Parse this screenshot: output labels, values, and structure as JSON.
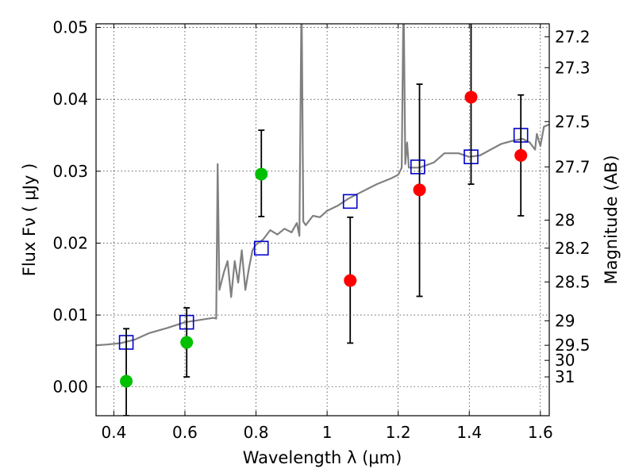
{
  "chart_data": {
    "type": "scatter",
    "title": "",
    "xlabel": "Wavelength  λ (μm)",
    "ylabel": "Flux  Fν  ( μJy )",
    "y2label": "Magnitude (AB)",
    "xlim": [
      0.35,
      1.625
    ],
    "ylim": [
      -0.004,
      0.0505
    ],
    "grid": true,
    "xticks": [
      0.4,
      0.6,
      0.8,
      1.0,
      1.2,
      1.4,
      1.6
    ],
    "xtick_labels": [
      "0.4",
      "0.6",
      "0.8",
      "1",
      "1.2",
      "1.4",
      "1.6"
    ],
    "yticks": [
      0.0,
      0.01,
      0.02,
      0.03,
      0.04,
      0.05
    ],
    "ytick_labels": [
      "0.00",
      "0.01",
      "0.02",
      "0.03",
      "0.04",
      "0.05"
    ],
    "mag_ticks": [
      {
        "label": "27.2",
        "flux": 0.0487
      },
      {
        "label": "27.3",
        "flux": 0.0444
      },
      {
        "label": "27.5",
        "flux": 0.0369
      },
      {
        "label": "27.7",
        "flux": 0.0306
      },
      {
        "label": "28",
        "flux": 0.0232
      },
      {
        "label": "28.2",
        "flux": 0.0193
      },
      {
        "label": "28.5",
        "flux": 0.0146
      },
      {
        "label": "29",
        "flux": 0.0092
      },
      {
        "label": "29.5",
        "flux": 0.0058
      },
      {
        "label": "30",
        "flux": 0.0037
      },
      {
        "label": "31",
        "flux": 0.0014
      }
    ],
    "series": [
      {
        "kind": "line",
        "color": "#808080",
        "points": [
          [
            0.35,
            0.0058
          ],
          [
            0.38,
            0.0059
          ],
          [
            0.42,
            0.0061
          ],
          [
            0.46,
            0.0066
          ],
          [
            0.5,
            0.0075
          ],
          [
            0.55,
            0.0082
          ],
          [
            0.6,
            0.009
          ],
          [
            0.64,
            0.0093
          ],
          [
            0.68,
            0.0096
          ],
          [
            0.688,
            0.0095
          ],
          [
            0.692,
            0.031
          ],
          [
            0.697,
            0.0135
          ],
          [
            0.71,
            0.016
          ],
          [
            0.72,
            0.0175
          ],
          [
            0.73,
            0.0125
          ],
          [
            0.74,
            0.0175
          ],
          [
            0.75,
            0.0145
          ],
          [
            0.76,
            0.019
          ],
          [
            0.77,
            0.0135
          ],
          [
            0.78,
            0.0165
          ],
          [
            0.79,
            0.019
          ],
          [
            0.8,
            0.0198
          ],
          [
            0.82,
            0.0205
          ],
          [
            0.84,
            0.0218
          ],
          [
            0.86,
            0.0212
          ],
          [
            0.88,
            0.022
          ],
          [
            0.9,
            0.0215
          ],
          [
            0.915,
            0.0228
          ],
          [
            0.922,
            0.021
          ],
          [
            0.928,
            0.055
          ],
          [
            0.933,
            0.023
          ],
          [
            0.94,
            0.0225
          ],
          [
            0.96,
            0.0238
          ],
          [
            0.98,
            0.0236
          ],
          [
            1.0,
            0.0245
          ],
          [
            1.03,
            0.0252
          ],
          [
            1.06,
            0.0262
          ],
          [
            1.1,
            0.0272
          ],
          [
            1.14,
            0.0282
          ],
          [
            1.18,
            0.029
          ],
          [
            1.2,
            0.0295
          ],
          [
            1.21,
            0.0305
          ],
          [
            1.215,
            0.055
          ],
          [
            1.22,
            0.031
          ],
          [
            1.225,
            0.034
          ],
          [
            1.23,
            0.0305
          ],
          [
            1.26,
            0.0305
          ],
          [
            1.3,
            0.0312
          ],
          [
            1.33,
            0.0325
          ],
          [
            1.37,
            0.0325
          ],
          [
            1.4,
            0.032
          ],
          [
            1.43,
            0.0322
          ],
          [
            1.46,
            0.033
          ],
          [
            1.49,
            0.0338
          ],
          [
            1.52,
            0.0342
          ],
          [
            1.55,
            0.0345
          ],
          [
            1.57,
            0.034
          ],
          [
            1.585,
            0.033
          ],
          [
            1.59,
            0.0352
          ],
          [
            1.6,
            0.0335
          ],
          [
            1.61,
            0.0362
          ],
          [
            1.625,
            0.0365
          ]
        ]
      },
      {
        "kind": "points",
        "marker": "square",
        "color": "#0000cc",
        "points": [
          [
            0.435,
            0.0062
          ],
          [
            0.605,
            0.009
          ],
          [
            0.815,
            0.0193
          ],
          [
            1.065,
            0.0258
          ],
          [
            1.255,
            0.0306
          ],
          [
            1.405,
            0.032
          ],
          [
            1.545,
            0.035
          ]
        ]
      },
      {
        "kind": "points",
        "marker": "circle",
        "color": "#00c000",
        "points": [
          {
            "x": 0.435,
            "y": 0.0008,
            "lo": -0.004,
            "hi": 0.0081
          },
          {
            "x": 0.605,
            "y": 0.0062,
            "lo": 0.0014,
            "hi": 0.011
          },
          {
            "x": 0.815,
            "y": 0.0296,
            "lo": 0.0237,
            "hi": 0.0357
          }
        ]
      },
      {
        "kind": "points",
        "marker": "circle",
        "color": "#ff0000",
        "points": [
          {
            "x": 1.065,
            "y": 0.0148,
            "lo": 0.0061,
            "hi": 0.0236
          },
          {
            "x": 1.26,
            "y": 0.0274,
            "lo": 0.0126,
            "hi": 0.0421
          },
          {
            "x": 1.405,
            "y": 0.0403,
            "lo": 0.0282,
            "hi": 0.052
          },
          {
            "x": 1.545,
            "y": 0.0322,
            "lo": 0.0238,
            "hi": 0.0406
          }
        ]
      }
    ]
  }
}
